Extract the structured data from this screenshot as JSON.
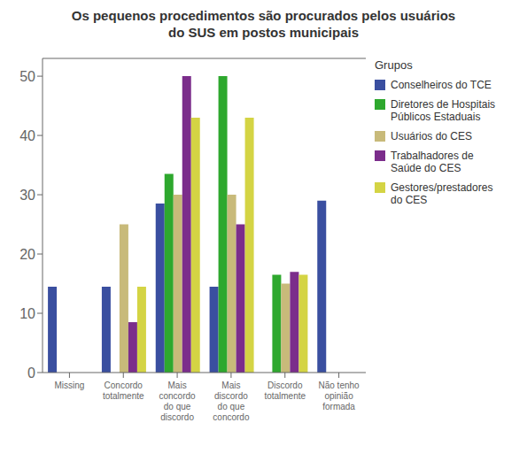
{
  "chart_data": {
    "type": "bar",
    "title": "Os pequenos procedimentos são procurados pelos usuários\ndo SUS em postos municipais",
    "legend_title": "Grupos",
    "categories": [
      "Missing",
      "Concordo\ntotalmente",
      "Mais\nconcordo\ndo que\ndiscordo",
      "Mais\ndiscordo\ndo que\nconcordo",
      "Discordo\ntotalmente",
      "Não tenho\nopinião\nformada"
    ],
    "series": [
      {
        "name": "Conselheiros do TCE",
        "color": "#3a4fa0",
        "values": [
          14.5,
          14.5,
          28.5,
          14.5,
          0,
          29
        ]
      },
      {
        "name": "Diretores de Hospitais\nPúblicos Estaduais",
        "color": "#2ea82e",
        "values": [
          0,
          0,
          33.5,
          50,
          16.5,
          0
        ]
      },
      {
        "name": "Usuários do CES",
        "color": "#c8ba7a",
        "values": [
          0,
          25,
          30,
          30,
          15,
          0
        ]
      },
      {
        "name": "Trabalhadores de\nSaúde do CES",
        "color": "#7b2d8b",
        "values": [
          0,
          8.5,
          50,
          25,
          17,
          0
        ]
      },
      {
        "name": "Gestores/prestadores\ndo CES",
        "color": "#d4d444",
        "values": [
          0,
          14.5,
          43,
          43,
          16.5,
          0
        ]
      }
    ],
    "ylim": [
      0,
      53
    ],
    "yticks": [
      0,
      10,
      20,
      30,
      40,
      50
    ],
    "grid": false,
    "legend": "right"
  }
}
